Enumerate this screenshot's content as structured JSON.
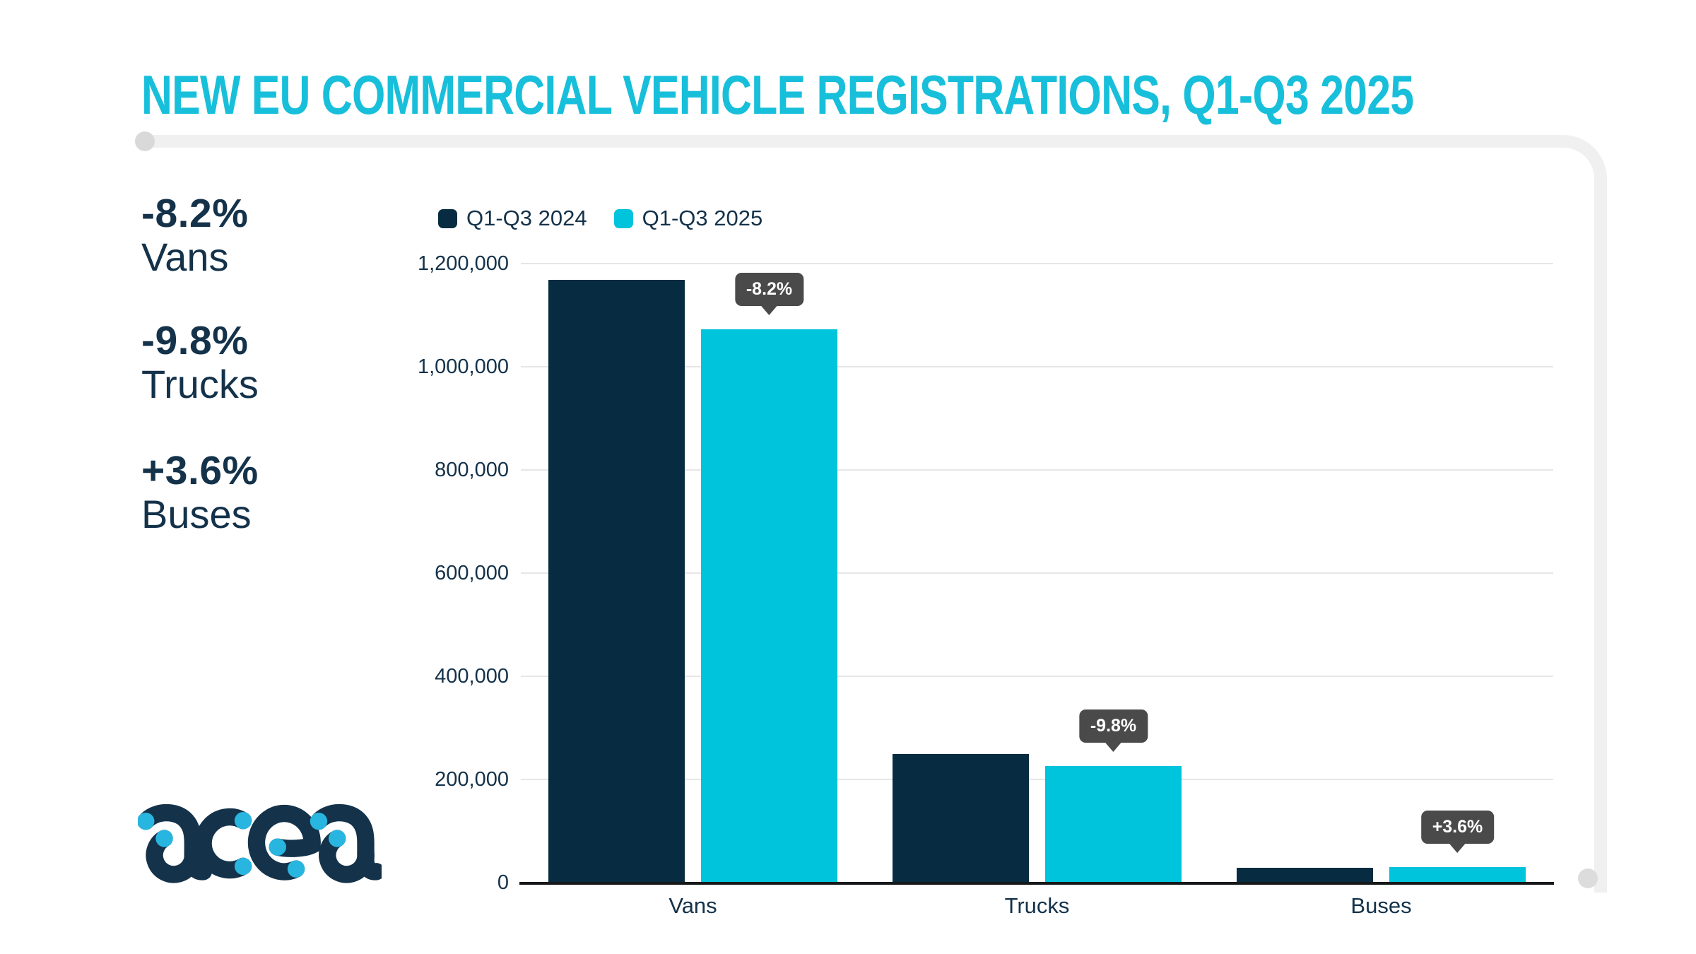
{
  "title": "NEW EU COMMERCIAL VEHICLE REGISTRATIONS, Q1-Q3 2025",
  "stats": [
    {
      "value": "-8.2%",
      "label": "Vans"
    },
    {
      "value": "-9.8%",
      "label": "Trucks"
    },
    {
      "value": "+3.6%",
      "label": "Buses"
    }
  ],
  "logo": {
    "name": "acea"
  },
  "colors": {
    "title_cyan": "#17bfda",
    "bar_navy": "#072c41",
    "bar_cyan": "#00c3dc",
    "text_navy": "#14324a",
    "tooltip_bg": "#4a4a4a",
    "tooltip_text": "#ffffff",
    "grid_gray": "#e6e6e6",
    "axis_dark": "#16181a",
    "frame_gray": "#f0f0f0",
    "frame_dot_gray": "#d9d9d9",
    "logo_dot_cyan": "#28b6e0"
  },
  "chart_data": {
    "type": "bar",
    "title": "NEW EU COMMERCIAL VEHICLE REGISTRATIONS, Q1-Q3 2025",
    "categories": [
      "Vans",
      "Trucks",
      "Buses"
    ],
    "series": [
      {
        "name": "Q1-Q3 2024",
        "color": "#072c41",
        "values": [
          1168000,
          250000,
          28500
        ]
      },
      {
        "name": "Q1-Q3 2025",
        "color": "#00c3dc",
        "values": [
          1072000,
          225500,
          29525
        ]
      }
    ],
    "annotations": [
      {
        "category": "Vans",
        "series": "Q1-Q3 2025",
        "label": "-8.2%"
      },
      {
        "category": "Trucks",
        "series": "Q1-Q3 2025",
        "label": "-9.8%"
      },
      {
        "category": "Buses",
        "series": "Q1-Q3 2025",
        "label": "+3.6%"
      }
    ],
    "xlabel": "",
    "ylabel": "",
    "ylim": [
      0,
      1200000
    ],
    "yticks": [
      {
        "value": 1200000,
        "label": "1,200,000"
      },
      {
        "value": 1000000,
        "label": "1,000,000"
      },
      {
        "value": 800000,
        "label": "800,000"
      },
      {
        "value": 600000,
        "label": "600,000"
      },
      {
        "value": 400000,
        "label": "400,000"
      },
      {
        "value": 200000,
        "label": "200,000"
      },
      {
        "value": 0,
        "label": "0"
      }
    ],
    "grid": true,
    "legend_position": "top-left"
  }
}
